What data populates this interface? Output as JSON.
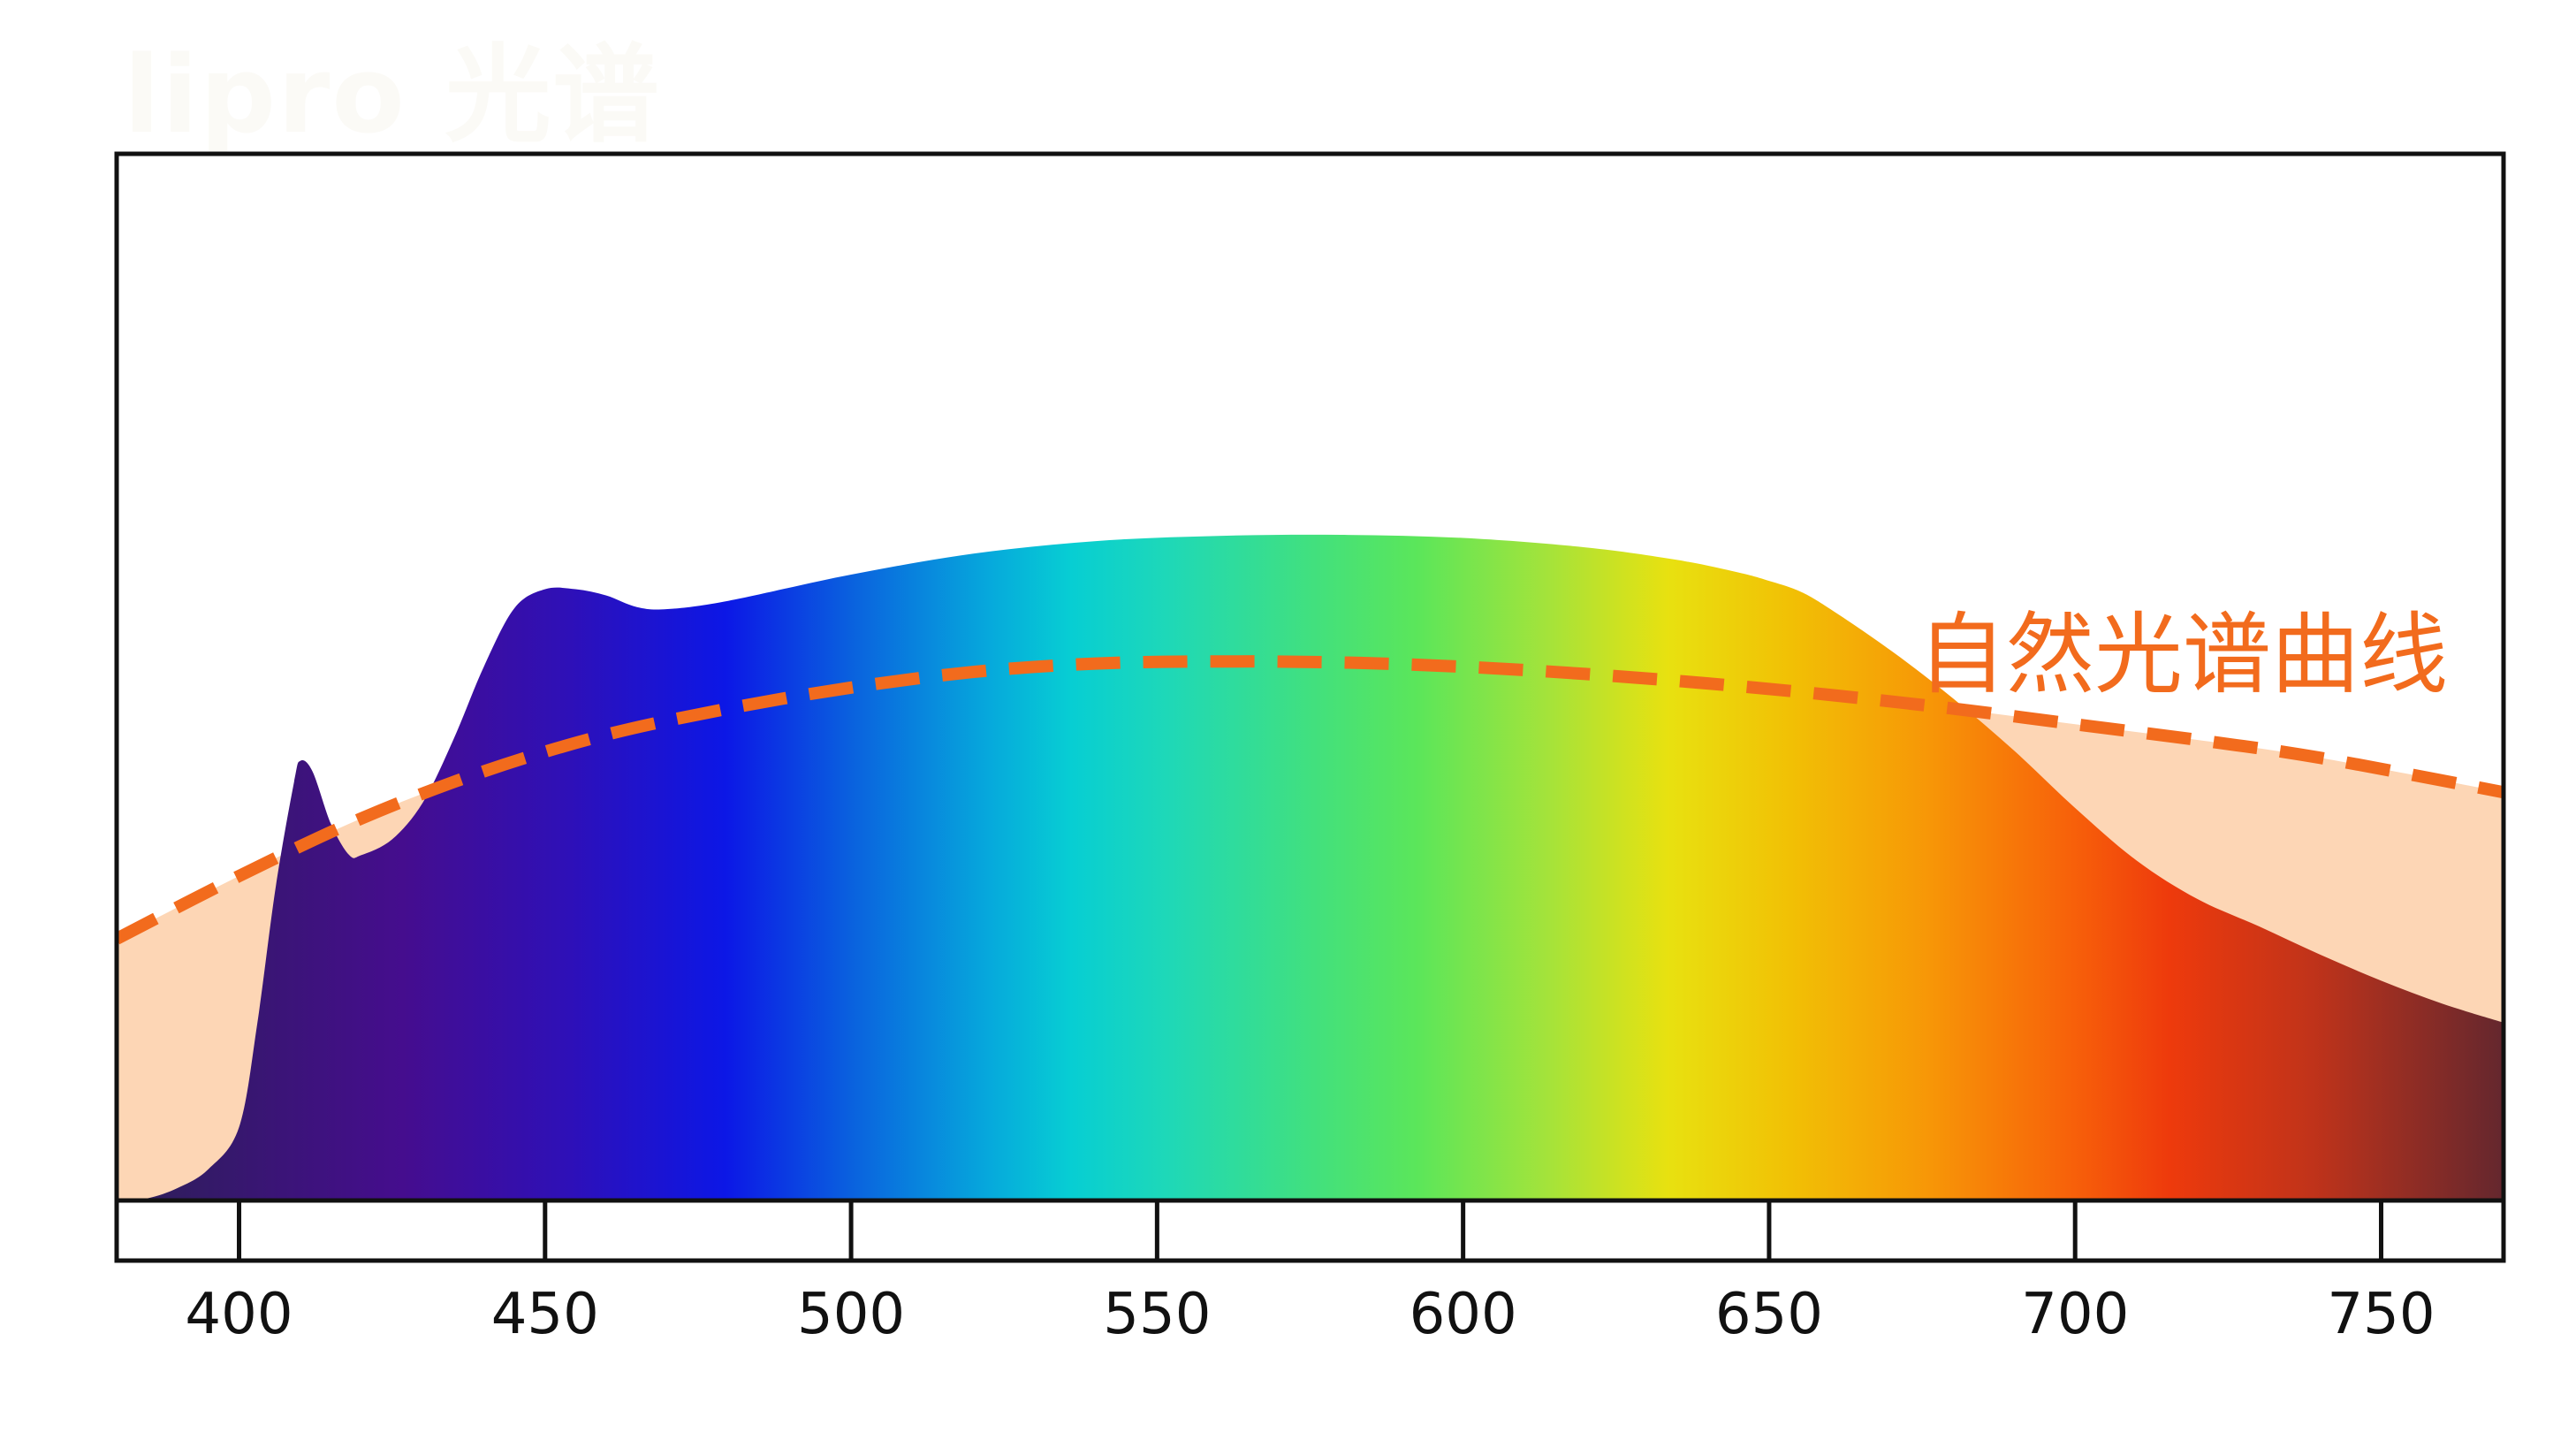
{
  "watermark": "lipro 光谱",
  "colors": {
    "natural_fill": "#fdd6b5",
    "natural_line": "#f26b1d",
    "frame": "#111111",
    "label": "#f26b1d"
  },
  "chart_data": {
    "type": "area",
    "title": "",
    "xlabel": "",
    "ylabel": "",
    "xlim": [
      380,
      770
    ],
    "ylim": [
      0,
      1
    ],
    "xticks": [
      400,
      450,
      500,
      550,
      600,
      650,
      700,
      750
    ],
    "grid": false,
    "series": [
      {
        "name": "自然光谱曲线",
        "style": "dashed",
        "x": [
          380,
          400,
          420,
          440,
          460,
          480,
          500,
          520,
          540,
          560,
          580,
          600,
          620,
          640,
          660,
          680,
          700,
          720,
          740,
          770
        ],
        "y": [
          0.25,
          0.31,
          0.365,
          0.41,
          0.445,
          0.47,
          0.49,
          0.505,
          0.513,
          0.515,
          0.514,
          0.51,
          0.503,
          0.494,
          0.483,
          0.47,
          0.455,
          0.44,
          0.423,
          0.39
        ]
      },
      {
        "name": "",
        "style": "rainbow-fill",
        "x": [
          380,
          385,
          390,
          395,
          400,
          403,
          406,
          409,
          410,
          412,
          415,
          418,
          420,
          425,
          430,
          435,
          440,
          445,
          450,
          455,
          460,
          465,
          470,
          480,
          500,
          520,
          540,
          560,
          580,
          600,
          620,
          635,
          645,
          650,
          655,
          660,
          670,
          680,
          690,
          700,
          710,
          720,
          730,
          740,
          750,
          760,
          770
        ],
        "y": [
          0.0,
          0.002,
          0.012,
          0.03,
          0.07,
          0.17,
          0.3,
          0.4,
          0.42,
          0.41,
          0.36,
          0.33,
          0.33,
          0.345,
          0.38,
          0.44,
          0.51,
          0.566,
          0.584,
          0.584,
          0.578,
          0.567,
          0.565,
          0.573,
          0.598,
          0.618,
          0.63,
          0.635,
          0.636,
          0.633,
          0.624,
          0.612,
          0.6,
          0.592,
          0.582,
          0.565,
          0.525,
          0.48,
          0.43,
          0.375,
          0.325,
          0.288,
          0.262,
          0.235,
          0.21,
          0.188,
          0.17
        ]
      }
    ]
  }
}
